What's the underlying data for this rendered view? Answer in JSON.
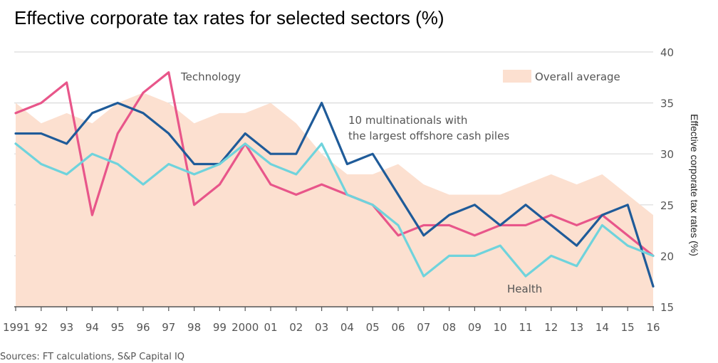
{
  "chart_data": {
    "type": "line",
    "title": "Effective corporate tax rates for selected sectors (%)",
    "source": "Sources: FT calculations, S&P Capital IQ",
    "ylabel": "Effective corporate tax rates (%)",
    "ylim": [
      15,
      40
    ],
    "y_ticks": [
      15,
      20,
      25,
      30,
      35,
      40
    ],
    "grid": true,
    "y_axis_position": "right",
    "categories": [
      "1991",
      "92",
      "93",
      "94",
      "95",
      "96",
      "97",
      "98",
      "99",
      "2000",
      "01",
      "02",
      "03",
      "04",
      "05",
      "06",
      "07",
      "08",
      "09",
      "10",
      "11",
      "12",
      "13",
      "14",
      "15",
      "16"
    ],
    "area": {
      "name": "Overall average",
      "color": "#fce0d0",
      "values": [
        35,
        33,
        34,
        33,
        35,
        36,
        35,
        33,
        34,
        34,
        35,
        33,
        30,
        28,
        28,
        29,
        27,
        26,
        26,
        26,
        27,
        28,
        27,
        28,
        26,
        24
      ]
    },
    "series": [
      {
        "name": "Technology",
        "color": "#e8568a",
        "values": [
          34,
          35,
          37,
          24,
          32,
          36,
          38,
          25,
          27,
          31,
          27,
          26,
          27,
          26,
          25,
          22,
          23,
          23,
          22,
          23,
          23,
          24,
          23,
          24,
          22,
          20
        ]
      },
      {
        "name": "10 multinationals with the largest offshore cash piles",
        "color": "#1f5b99",
        "values": [
          32,
          32,
          31,
          34,
          35,
          34,
          32,
          29,
          29,
          32,
          30,
          30,
          35,
          29,
          30,
          26,
          22,
          24,
          25,
          23,
          25,
          23,
          21,
          24,
          25,
          17
        ]
      },
      {
        "name": "Health",
        "color": "#6fd3dc",
        "values": [
          31,
          29,
          28,
          30,
          29,
          27,
          29,
          28,
          29,
          31,
          29,
          28,
          31,
          26,
          25,
          23,
          18,
          20,
          20,
          21,
          18,
          20,
          19,
          23,
          21,
          20
        ]
      }
    ],
    "annotations": {
      "technology": "Technology",
      "multinationals_line1": "10 multinationals with",
      "multinationals_line2": "the largest offshore cash piles",
      "health": "Health",
      "legend_area": "Overall average"
    }
  }
}
